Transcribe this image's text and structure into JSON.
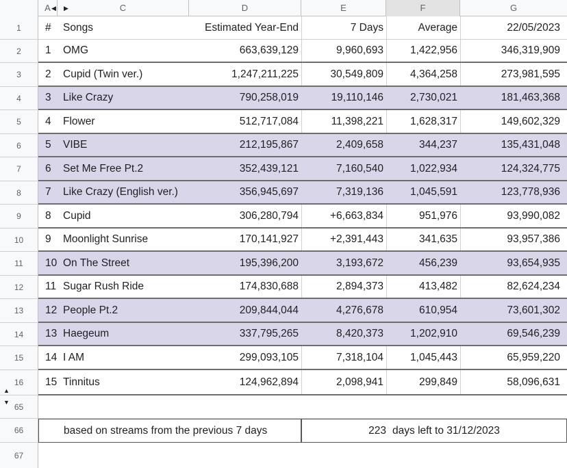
{
  "column_headers": [
    "A",
    "C",
    "D",
    "E",
    "F",
    "G"
  ],
  "row_numbers": [
    "1",
    "2",
    "3",
    "4",
    "5",
    "6",
    "7",
    "8",
    "9",
    "10",
    "11",
    "12",
    "13",
    "14",
    "15",
    "16",
    "65",
    "66",
    "67"
  ],
  "header": {
    "num": "#",
    "songs": "Songs",
    "estimated": "Estimated Year-End",
    "days7": "7 Days",
    "average": "Average",
    "date": "22/05/2023"
  },
  "rows": [
    {
      "rank": "1",
      "song": "OMG",
      "estimated": "663,639,129",
      "days7": "9,960,693",
      "average": "1,422,956",
      "total": "346,319,909"
    },
    {
      "rank": "2",
      "song": "Cupid (Twin ver.)",
      "estimated": "1,247,211,225",
      "days7": "30,549,809",
      "average": "4,364,258",
      "total": "273,981,595"
    },
    {
      "rank": "3",
      "song": "Like Crazy",
      "estimated": "790,258,019",
      "days7": "19,110,146",
      "average": "2,730,021",
      "total": "181,463,368"
    },
    {
      "rank": "4",
      "song": "Flower",
      "estimated": "512,717,084",
      "days7": "11,398,221",
      "average": "1,628,317",
      "total": "149,602,329"
    },
    {
      "rank": "5",
      "song": "VIBE",
      "estimated": "212,195,867",
      "days7": "2,409,658",
      "average": "344,237",
      "total": "135,431,048"
    },
    {
      "rank": "6",
      "song": "Set Me Free Pt.2",
      "estimated": "352,439,121",
      "days7": "7,160,540",
      "average": "1,022,934",
      "total": "124,324,775"
    },
    {
      "rank": "7",
      "song": "Like Crazy (English ver.)",
      "estimated": "356,945,697",
      "days7": "7,319,136",
      "average": "1,045,591",
      "total": "123,778,936"
    },
    {
      "rank": "8",
      "song": "Cupid",
      "estimated": "306,280,794",
      "days7": "+6,663,834",
      "average": "951,976",
      "total": "93,990,082"
    },
    {
      "rank": "9",
      "song": "Moonlight Sunrise",
      "estimated": "170,141,927",
      "days7": "+2,391,443",
      "average": "341,635",
      "total": "93,957,386"
    },
    {
      "rank": "10",
      "song": "On The Street",
      "estimated": "195,396,200",
      "days7": "3,193,672",
      "average": "456,239",
      "total": "93,654,935"
    },
    {
      "rank": "11",
      "song": "Sugar Rush Ride",
      "estimated": "174,830,688",
      "days7": "2,894,373",
      "average": "413,482",
      "total": "82,624,234"
    },
    {
      "rank": "12",
      "song": "People Pt.2",
      "estimated": "209,844,044",
      "days7": "4,276,678",
      "average": "610,954",
      "total": "73,601,302"
    },
    {
      "rank": "13",
      "song": "Haegeum",
      "estimated": "337,795,265",
      "days7": "8,420,373",
      "average": "1,202,910",
      "total": "69,546,239"
    },
    {
      "rank": "14",
      "song": "I AM",
      "estimated": "299,093,105",
      "days7": "7,318,104",
      "average": "1,045,443",
      "total": "65,959,220"
    },
    {
      "rank": "15",
      "song": "Tinnitus",
      "estimated": "124,962,894",
      "days7": "2,098,941",
      "average": "299,849",
      "total": "58,096,631"
    }
  ],
  "footer": {
    "note": "based on streams from the previous 7 days",
    "days_left": "223",
    "days_left_suffix": "days left to 31/12/2023"
  },
  "colors": {
    "highlight": "#d9d6ea",
    "header_bg": "#f8f9fa",
    "selected_col": "#e3e3e3"
  }
}
